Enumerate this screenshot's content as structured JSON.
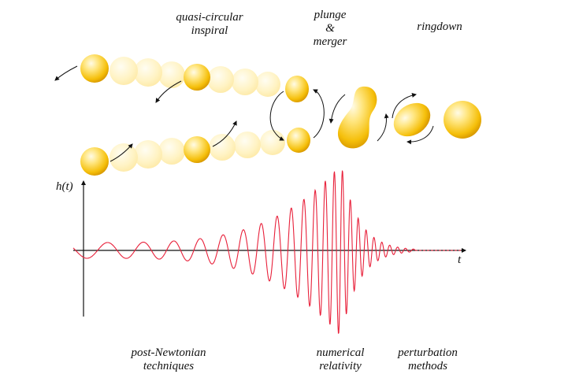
{
  "stages": {
    "inspiral": [
      "quasi-circular",
      "inspiral"
    ],
    "merger": [
      "plunge",
      "&",
      "merger"
    ],
    "ringdown": [
      "ringdown"
    ]
  },
  "methods": {
    "pn": [
      "post-Newtonian",
      "techniques"
    ],
    "nr": [
      "numerical",
      "relativity"
    ],
    "pert": [
      "perturbation",
      "methods"
    ]
  },
  "axes": {
    "y_label": "h(t)",
    "x_label": "t"
  },
  "colors": {
    "waveform": "#e8203a",
    "body_core": "#ffd11a",
    "body_highlight": "#fff6cc",
    "ghost": "#fff0bf",
    "axis": "#111111",
    "background": "#ffffff"
  }
}
